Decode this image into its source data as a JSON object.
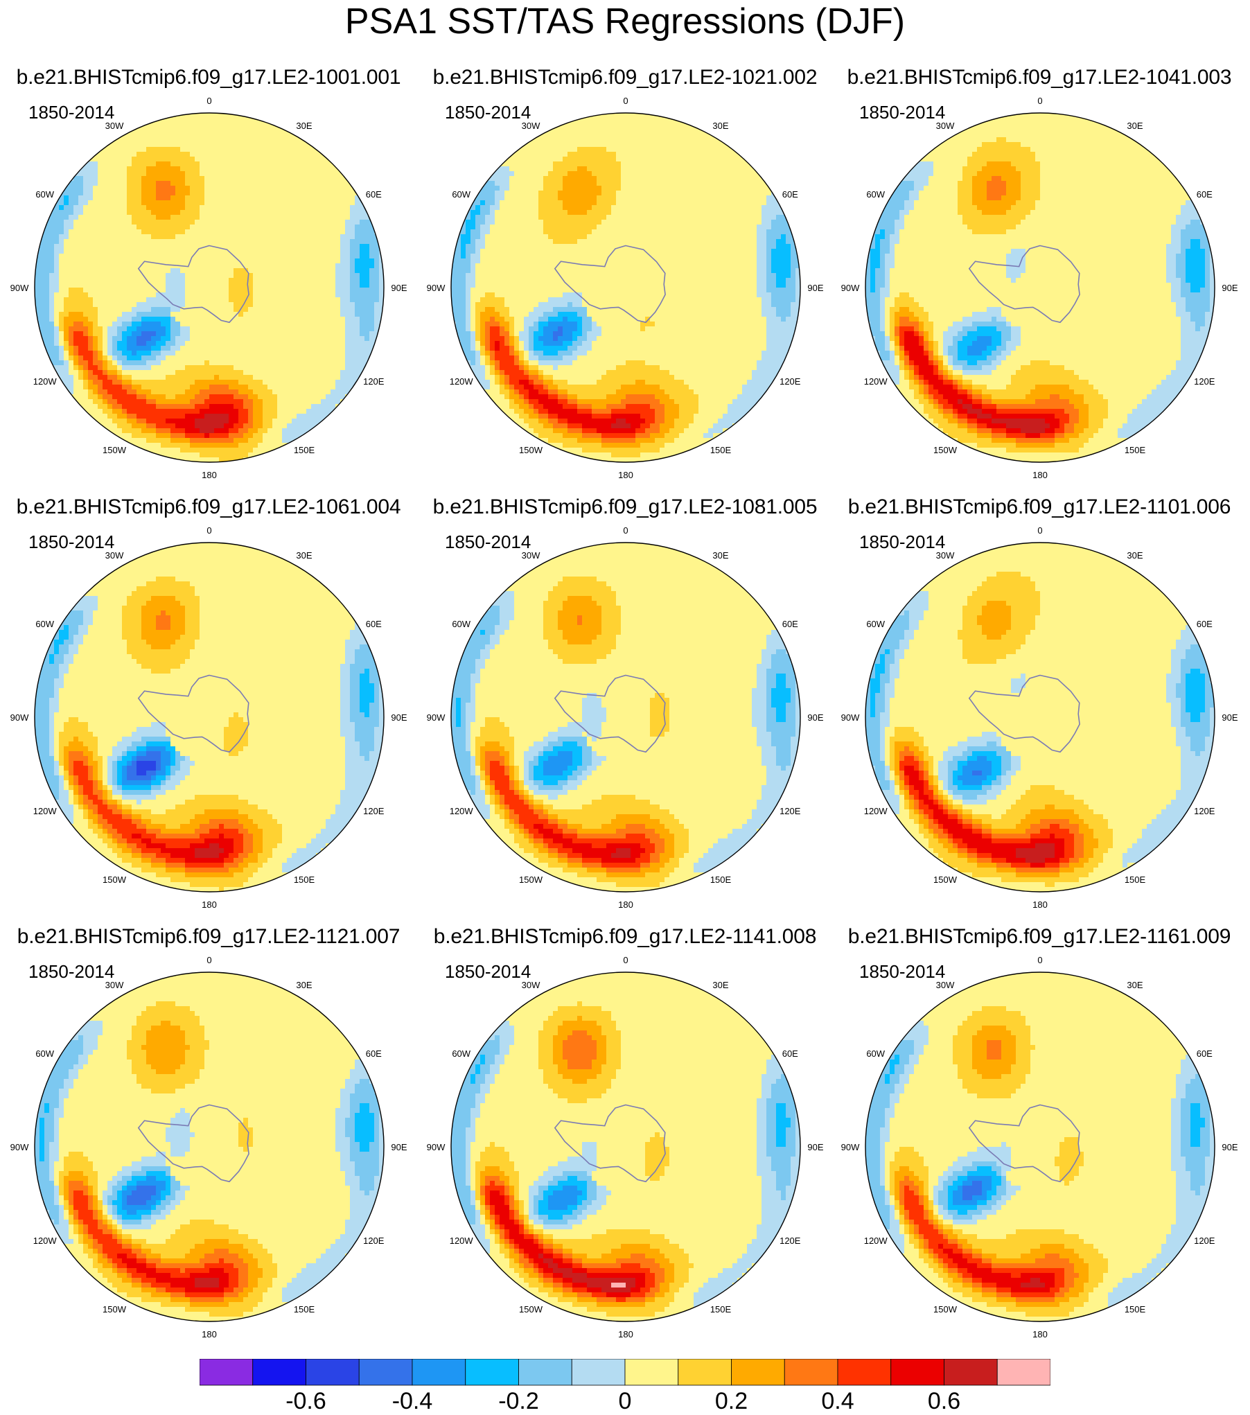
{
  "title": "PSA1 SST/TAS Regressions (DJF)",
  "chart_data": {
    "type": "heatmap",
    "projection": "south-polar-stereographic",
    "period": "1850-2014",
    "longitude_labels": [
      "0",
      "30E",
      "60E",
      "90E",
      "120E",
      "150E",
      "180",
      "150W",
      "120W",
      "90W",
      "60W",
      "30W"
    ],
    "panels": [
      {
        "name": "b.e21.BHISTcmip6.f09_g17.LE2-1001.001",
        "period": "1850-2014"
      },
      {
        "name": "b.e21.BHISTcmip6.f09_g17.LE2-1021.002",
        "period": "1850-2014"
      },
      {
        "name": "b.e21.BHISTcmip6.f09_g17.LE2-1041.003",
        "period": "1850-2014"
      },
      {
        "name": "b.e21.BHISTcmip6.f09_g17.LE2-1061.004",
        "period": "1850-2014"
      },
      {
        "name": "b.e21.BHISTcmip6.f09_g17.LE2-1081.005",
        "period": "1850-2014"
      },
      {
        "name": "b.e21.BHISTcmip6.f09_g17.LE2-1101.006",
        "period": "1850-2014"
      },
      {
        "name": "b.e21.BHISTcmip6.f09_g17.LE2-1121.007",
        "period": "1850-2014"
      },
      {
        "name": "b.e21.BHISTcmip6.f09_g17.LE2-1141.008",
        "period": "1850-2014"
      },
      {
        "name": "b.e21.BHISTcmip6.f09_g17.LE2-1161.009",
        "period": "1850-2014"
      }
    ],
    "colorbar": {
      "levels": [
        -0.7,
        -0.6,
        -0.5,
        -0.4,
        -0.3,
        -0.2,
        -0.1,
        0,
        0.1,
        0.2,
        0.3,
        0.4,
        0.5,
        0.6,
        0.7
      ],
      "colors": [
        "#8a2be2",
        "#1414f0",
        "#2a44e6",
        "#3472ea",
        "#1e96f4",
        "#08beff",
        "#7cc8f0",
        "#b4dcf2",
        "#fff58c",
        "#ffd232",
        "#ffaa00",
        "#ff7814",
        "#ff3200",
        "#eb0000",
        "#c81e1e",
        "#ffb4b4"
      ],
      "tick_labels": [
        "-0.6",
        "-0.4",
        "-0.2",
        "0",
        "0.2",
        "0.4",
        "0.6"
      ],
      "tick_values": [
        -0.6,
        -0.4,
        -0.2,
        0,
        0.2,
        0.4,
        0.6
      ]
    }
  }
}
